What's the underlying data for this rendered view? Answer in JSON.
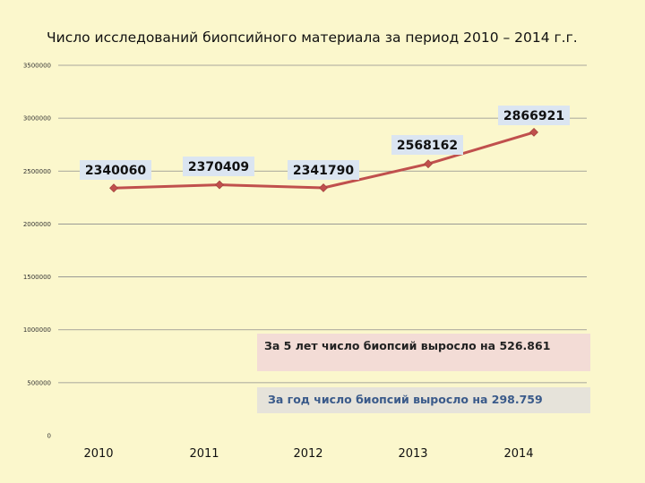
{
  "chart_data": {
    "type": "line",
    "title": "Число исследований биопсийного материала за период 2010 – 2014 г.г.",
    "categories": [
      "2010",
      "2011",
      "2012",
      "2013",
      "2014"
    ],
    "series": [
      {
        "values": [
          2340060,
          2370409,
          2341790,
          2568162,
          2866921
        ]
      }
    ],
    "data_labels": [
      "2340060",
      "2370409",
      "2341790",
      "2568162",
      "2866921"
    ],
    "ylim": [
      0,
      3500000
    ],
    "yticks": [
      0,
      500000,
      1000000,
      1500000,
      2000000,
      2500000,
      3000000,
      3500000
    ],
    "grid": true,
    "colors": {
      "line": "#c0504d",
      "marker": "#c0504d",
      "label_bg": "#dbe5f1",
      "background": "#fbf7cc"
    }
  },
  "notes": {
    "five_year": "За 5 лет число биопсий выросло на 526.861",
    "one_year": "За год число биопсий выросло на 298.759"
  }
}
